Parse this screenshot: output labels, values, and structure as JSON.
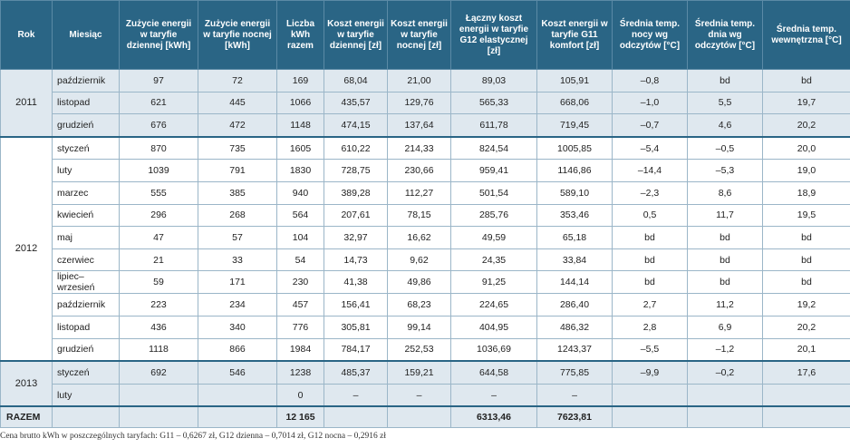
{
  "headers": [
    "Rok",
    "Miesiąc",
    "Zużycie energii w taryfie dziennej [kWh]",
    "Zużycie energii w taryfie nocnej [kWh]",
    "Liczba kWh razem",
    "Koszt energii w taryfie dziennej [zł]",
    "Koszt energii w taryfie nocnej [zł]",
    "Łączny koszt energii w taryfie G12 elastycznej [zł]",
    "Koszt energii w taryfie G11 komfort [zł]",
    "Średnia temp. nocy wg odczytów [°C]",
    "Średnia temp. dnia wg odczytów [°C]",
    "Średnia temp. wewnętrzna [°C]"
  ],
  "groups": [
    {
      "year": "2011",
      "rows": [
        [
          "październik",
          "97",
          "72",
          "169",
          "68,04",
          "21,00",
          "89,03",
          "105,91",
          "–0,8",
          "bd",
          "bd"
        ],
        [
          "listopad",
          "621",
          "445",
          "1066",
          "435,57",
          "129,76",
          "565,33",
          "668,06",
          "–1,0",
          "5,5",
          "19,7"
        ],
        [
          "grudzień",
          "676",
          "472",
          "1148",
          "474,15",
          "137,64",
          "611,78",
          "719,45",
          "–0,7",
          "4,6",
          "20,2"
        ]
      ]
    },
    {
      "year": "2012",
      "rows": [
        [
          "styczeń",
          "870",
          "735",
          "1605",
          "610,22",
          "214,33",
          "824,54",
          "1005,85",
          "–5,4",
          "–0,5",
          "20,0"
        ],
        [
          "luty",
          "1039",
          "791",
          "1830",
          "728,75",
          "230,66",
          "959,41",
          "1146,86",
          "–14,4",
          "–5,3",
          "19,0"
        ],
        [
          "marzec",
          "555",
          "385",
          "940",
          "389,28",
          "112,27",
          "501,54",
          "589,10",
          "–2,3",
          "8,6",
          "18,9"
        ],
        [
          "kwiecień",
          "296",
          "268",
          "564",
          "207,61",
          "78,15",
          "285,76",
          "353,46",
          "0,5",
          "11,7",
          "19,5"
        ],
        [
          "maj",
          "47",
          "57",
          "104",
          "32,97",
          "16,62",
          "49,59",
          "65,18",
          "bd",
          "bd",
          "bd"
        ],
        [
          "czerwiec",
          "21",
          "33",
          "54",
          "14,73",
          "9,62",
          "24,35",
          "33,84",
          "bd",
          "bd",
          "bd"
        ],
        [
          "lipiec–wrzesień",
          "59",
          "171",
          "230",
          "41,38",
          "49,86",
          "91,25",
          "144,14",
          "bd",
          "bd",
          "bd"
        ],
        [
          "październik",
          "223",
          "234",
          "457",
          "156,41",
          "68,23",
          "224,65",
          "286,40",
          "2,7",
          "11,2",
          "19,2"
        ],
        [
          "listopad",
          "436",
          "340",
          "776",
          "305,81",
          "99,14",
          "404,95",
          "486,32",
          "2,8",
          "6,9",
          "20,2"
        ],
        [
          "grudzień",
          "1118",
          "866",
          "1984",
          "784,17",
          "252,53",
          "1036,69",
          "1243,37",
          "–5,5",
          "–1,2",
          "20,1"
        ]
      ]
    },
    {
      "year": "2013",
      "rows": [
        [
          "styczeń",
          "692",
          "546",
          "1238",
          "485,37",
          "159,21",
          "644,58",
          "775,85",
          "–9,9",
          "–0,2",
          "17,6"
        ],
        [
          "luty",
          "",
          "",
          "0",
          "–",
          "–",
          "–",
          "–",
          "",
          "",
          ""
        ]
      ]
    }
  ],
  "total": [
    "RAZEM",
    "",
    "",
    "",
    "12 165",
    "",
    "",
    "6313,46",
    "7623,81",
    "",
    "",
    ""
  ],
  "footnote": "Cena brutto kWh w poszczególnych taryfach: G11 – 0,6267 zł, G12 dzienna – 0,7014 zł, G12 nocna – 0,2916 zł",
  "colors": {
    "header_bg": "#2a6585",
    "band": "#dfe8ef",
    "border": "#9bb6c8"
  }
}
